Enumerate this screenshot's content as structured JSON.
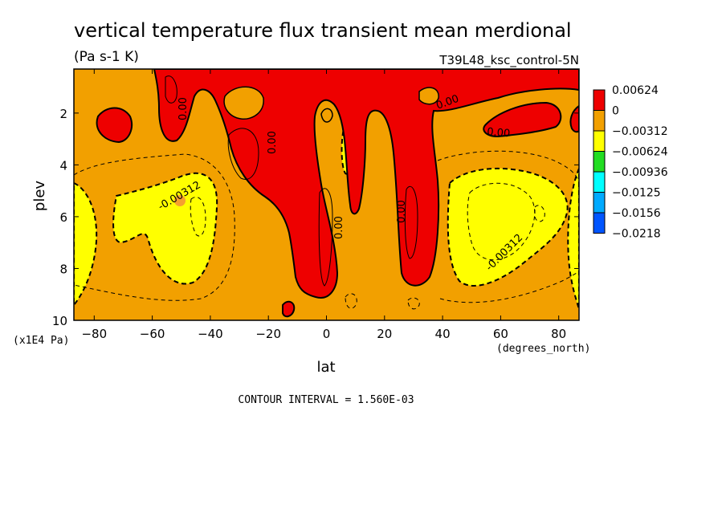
{
  "chart_data": {
    "type": "heatmap",
    "title": "vertical temperature flux transient mean merdional",
    "units": "(Pa s-1 K)",
    "run_label": "T39L48_ksc_control-5N",
    "xlabel": "lat",
    "x_units": "(degrees_north)",
    "ylabel": "plev",
    "y_units": "(x1E4 Pa)",
    "xlim": [
      -87,
      87
    ],
    "ylim": [
      10,
      0.3
    ],
    "y_inverted": true,
    "x_ticks": [
      "-80",
      "-60",
      "-40",
      "-20",
      "0",
      "20",
      "40",
      "60",
      "80"
    ],
    "y_ticks": [
      "2",
      "4",
      "6",
      "8",
      "10"
    ],
    "contour_interval_text": "CONTOUR INTERVAL = 1.560E-03",
    "contour_labels": [
      "0.00",
      "0.00",
      "0.00",
      "0.00",
      "0.00",
      "0.00",
      "-0.00312",
      "-0.00312"
    ],
    "colorbar": {
      "labels": [
        "0.00624",
        "0",
        "−0.00312",
        "−0.00624",
        "−0.00936",
        "−0.0125",
        "−0.0156",
        "−0.0218"
      ],
      "colors": [
        "#ee0000",
        "#f2a000",
        "#ffff00",
        "#22dd22",
        "#00ffff",
        "#00aaff",
        "#0055ff"
      ]
    },
    "regions": {
      "background_color": "#f2a000",
      "positive_color": "#ee0000",
      "negative_color": "#ffff00"
    }
  }
}
